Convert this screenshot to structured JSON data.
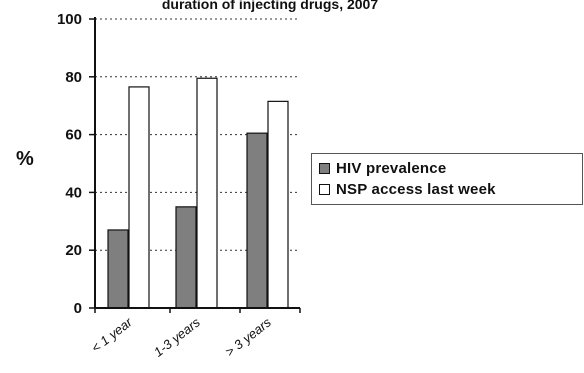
{
  "chart_data": {
    "type": "bar",
    "title": "duration of injecting drugs, 2007",
    "xlabel": "",
    "ylabel": "%",
    "categories": [
      "< 1 year",
      "1-3 years",
      "> 3 years"
    ],
    "series": [
      {
        "name": "HIV prevalence",
        "color": "#7f7f7f",
        "values": [
          27,
          35,
          60.5
        ]
      },
      {
        "name": "NSP access last week",
        "color": "#ffffff",
        "values": [
          76.5,
          79.5,
          71.5
        ]
      }
    ],
    "ylim": [
      0,
      100
    ],
    "yticks": [
      0,
      20,
      40,
      60,
      80,
      100
    ],
    "grid": "horizontal dotted",
    "legend_position": "right"
  }
}
